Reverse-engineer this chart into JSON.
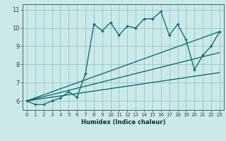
{
  "xlabel": "Humidex (Indice chaleur)",
  "bg_color": "#cce9e9",
  "grid_color": "#99cccc",
  "line_color": "#006666",
  "xlim": [
    -0.5,
    23.5
  ],
  "ylim": [
    5.5,
    11.3
  ],
  "xticks": [
    0,
    1,
    2,
    3,
    4,
    5,
    6,
    7,
    8,
    9,
    10,
    11,
    12,
    13,
    14,
    15,
    16,
    17,
    18,
    19,
    20,
    21,
    22,
    23
  ],
  "yticks": [
    6,
    7,
    8,
    9,
    10,
    11
  ],
  "line1_x": [
    0,
    1,
    2,
    3,
    4,
    5,
    6,
    7,
    8,
    9,
    10,
    11,
    12,
    13,
    14,
    15,
    16,
    17,
    18,
    19,
    20,
    21,
    22,
    23
  ],
  "line1_y": [
    6.0,
    5.8,
    5.8,
    6.0,
    6.15,
    6.5,
    6.2,
    7.5,
    10.2,
    9.85,
    10.3,
    9.6,
    10.1,
    10.0,
    10.5,
    10.5,
    10.9,
    9.6,
    10.2,
    9.35,
    7.7,
    8.5,
    9.0,
    9.8
  ],
  "line2_x": [
    0,
    23
  ],
  "line2_y": [
    6.0,
    9.8
  ],
  "line3_x": [
    0,
    23
  ],
  "line3_y": [
    6.0,
    8.65
  ],
  "line4_x": [
    0,
    23
  ],
  "line4_y": [
    6.0,
    7.55
  ]
}
